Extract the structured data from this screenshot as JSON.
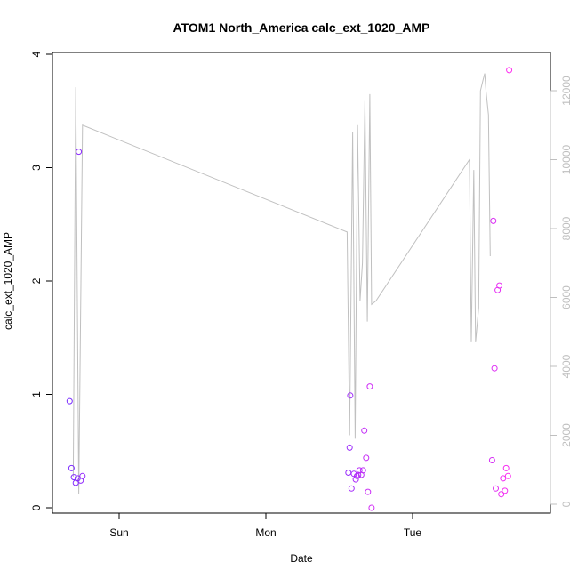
{
  "chart_data": {
    "type": "scatter",
    "title": "ATOM1 North_America calc_ext_1020_AMP",
    "xlabel": "Date",
    "ylabel": "calc_ext_1020_AMP",
    "x_tick_labels": [
      "Sun",
      "Mon",
      "Tue"
    ],
    "x_tick_positions_hours": [
      0,
      24,
      48
    ],
    "xlim_hours": [
      -9.5,
      62.5
    ],
    "ylim": [
      0,
      4
    ],
    "y_ticks": [
      0,
      1,
      2,
      3,
      4
    ],
    "y2lim": [
      0,
      12800
    ],
    "y2_ticks": [
      0,
      2000,
      4000,
      6000,
      8000,
      10000,
      12000
    ],
    "grid": false,
    "legend": "none",
    "colors": {
      "points_start": "#7a2cff",
      "points_end": "#ff2cf0",
      "line": "#c0c0c0",
      "right_axis": "#bfbfbf"
    },
    "series": [
      {
        "type": "scatter",
        "axis": "left",
        "x_hours": [
          -8.1,
          -7.8,
          -7.4,
          -7.1,
          -6.8,
          -6.6,
          -6.3,
          -6.0,
          37.5,
          37.7,
          37.8,
          38.0,
          38.4,
          38.7,
          38.9,
          39.1,
          39.3,
          39.6,
          39.9,
          40.1,
          40.4,
          40.7,
          41.0,
          41.3,
          61.0,
          61.2,
          61.4,
          61.6,
          61.9,
          62.2,
          62.5,
          62.8,
          63.1,
          63.3,
          63.6,
          63.8
        ],
        "values": [
          0.94,
          0.35,
          0.27,
          0.22,
          0.26,
          3.14,
          0.24,
          0.28,
          0.31,
          0.53,
          0.99,
          0.17,
          0.3,
          0.25,
          0.28,
          0.29,
          0.33,
          0.29,
          0.33,
          0.68,
          0.44,
          0.14,
          1.07,
          0.0,
          0.42,
          2.53,
          1.23,
          0.17,
          1.92,
          1.96,
          0.12,
          0.26,
          0.15,
          0.35,
          0.28,
          3.86
        ]
      },
      {
        "type": "line",
        "axis": "right",
        "x_hours": [
          -7.5,
          -7.1,
          -6.6,
          -6.0,
          37.3,
          37.7,
          38.2,
          38.6,
          39.0,
          39.4,
          39.8,
          40.2,
          40.6,
          41.0,
          41.3,
          42.0,
          57.3,
          57.6,
          58.0,
          58.3,
          58.8,
          59.1,
          59.5,
          59.8,
          60.0,
          60.4,
          60.7
        ],
        "values": [
          800,
          12100,
          300,
          11000,
          7900,
          2000,
          10800,
          1900,
          11000,
          5900,
          7000,
          11700,
          5300,
          11900,
          5800,
          5900,
          10000,
          4700,
          9700,
          4700,
          5700,
          12000,
          12300,
          12500,
          12000,
          11300,
          7200
        ]
      }
    ]
  }
}
